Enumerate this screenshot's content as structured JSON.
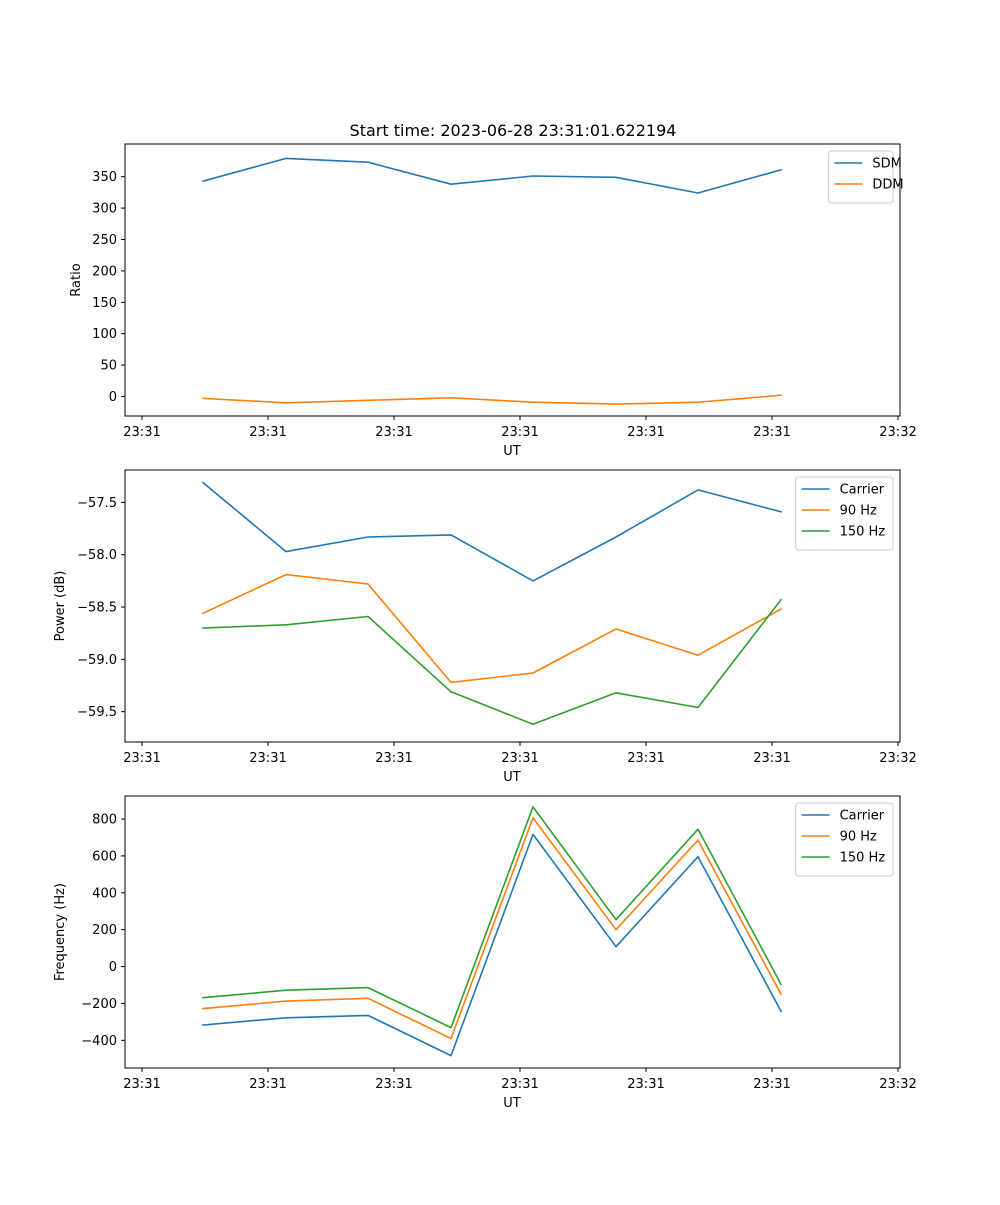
{
  "title": "Start time: 2023-06-28 23:31:01.622194",
  "chart_data": [
    {
      "type": "line",
      "xlabel": "UT",
      "ylabel": "Ratio",
      "x_tick_labels": [
        "23:31",
        "23:31",
        "23:31",
        "23:31",
        "23:31",
        "23:31",
        "23:32"
      ],
      "y_ticks": [
        0,
        50,
        100,
        150,
        200,
        250,
        300,
        350
      ],
      "ylim": [
        -31,
        402
      ],
      "legend_position": "top-right",
      "grid": false,
      "series": [
        {
          "name": "SDM",
          "color": "#1f77b4",
          "values": [
            343,
            379,
            373,
            338,
            351,
            349,
            324,
            361
          ]
        },
        {
          "name": "DDM",
          "color": "#ff7f0e",
          "values": [
            -3,
            -10,
            -6,
            -2,
            -9,
            -12,
            -9,
            2
          ]
        }
      ]
    },
    {
      "type": "line",
      "xlabel": "UT",
      "ylabel": "Power (dB)",
      "x_tick_labels": [
        "23:31",
        "23:31",
        "23:31",
        "23:31",
        "23:31",
        "23:31",
        "23:32"
      ],
      "y_ticks": [
        -57.5,
        -58.0,
        -58.5,
        -59.0,
        -59.5
      ],
      "y_tick_labels": [
        "−57.5",
        "−58.0",
        "−58.5",
        "−59.0",
        "−59.5"
      ],
      "ylim": [
        -59.79,
        -57.19
      ],
      "legend_position": "top-right",
      "grid": false,
      "series": [
        {
          "name": "Carrier",
          "color": "#1f77b4",
          "values": [
            -57.31,
            -57.97,
            -57.83,
            -57.81,
            -58.25,
            -57.83,
            -57.38,
            -57.59
          ]
        },
        {
          "name": "90 Hz",
          "color": "#ff7f0e",
          "values": [
            -58.56,
            -58.19,
            -58.28,
            -59.22,
            -59.13,
            -58.71,
            -58.96,
            -58.52
          ]
        },
        {
          "name": "150 Hz",
          "color": "#2ca02c",
          "values": [
            -58.7,
            -58.67,
            -58.59,
            -59.31,
            -59.62,
            -59.32,
            -59.46,
            -58.43
          ]
        }
      ]
    },
    {
      "type": "line",
      "xlabel": "UT",
      "ylabel": "Frequency (Hz)",
      "x_tick_labels": [
        "23:31",
        "23:31",
        "23:31",
        "23:31",
        "23:31",
        "23:31",
        "23:32"
      ],
      "y_ticks": [
        -400,
        -200,
        0,
        200,
        400,
        600,
        800
      ],
      "y_tick_labels": [
        "−400",
        "−200",
        "0",
        "200",
        "400",
        "600",
        "800"
      ],
      "ylim": [
        -550,
        925
      ],
      "legend_position": "top-right",
      "grid": false,
      "series": [
        {
          "name": "Carrier",
          "color": "#1f77b4",
          "values": [
            -317,
            -278,
            -265,
            -483,
            717,
            108,
            596,
            -242
          ]
        },
        {
          "name": "90 Hz",
          "color": "#ff7f0e",
          "values": [
            -228,
            -187,
            -172,
            -390,
            806,
            200,
            686,
            -150
          ]
        },
        {
          "name": "150 Hz",
          "color": "#2ca02c",
          "values": [
            -169,
            -128,
            -114,
            -331,
            866,
            254,
            745,
            -96
          ]
        }
      ]
    }
  ]
}
